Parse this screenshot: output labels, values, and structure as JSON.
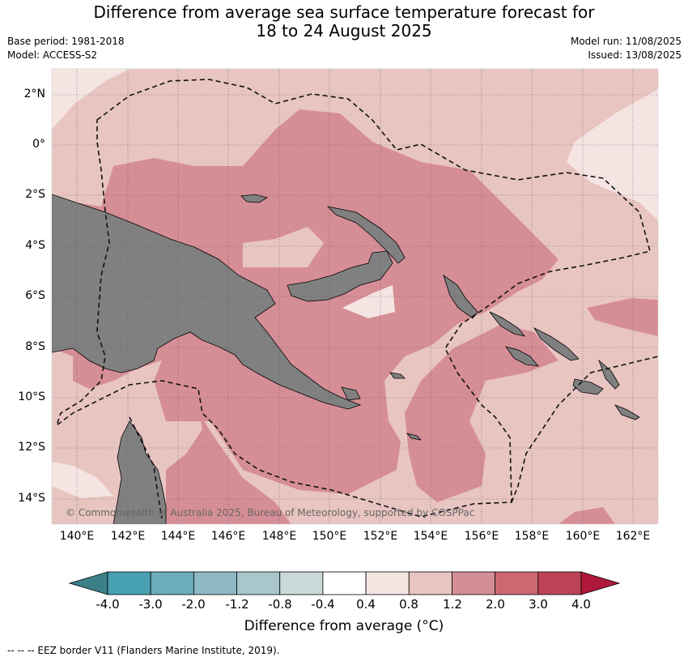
{
  "title_line1": "Difference from average sea surface temperature forecast for",
  "title_line2": "18 to 24 August 2025",
  "base_period": "Base period: 1981-2018",
  "model": "Model: ACCESS-S2",
  "model_run": "Model run: 11/08/2025",
  "issued": "Issued: 13/08/2025",
  "lat_labels": [
    "2°N",
    "0°",
    "2°S",
    "4°S",
    "6°S",
    "8°S",
    "10°S",
    "12°S",
    "14°S"
  ],
  "lon_labels": [
    "140°E",
    "142°E",
    "144°E",
    "146°E",
    "148°E",
    "150°E",
    "152°E",
    "154°E",
    "156°E",
    "158°E",
    "160°E",
    "162°E"
  ],
  "copyright": "© Commonwealth of Australia 2025, Bureau of Meteorology, supported by COSPPac",
  "colorbar": {
    "title": "Difference from average (°C)",
    "ticks": [
      "-4.0",
      "-3.0",
      "-2.0",
      "-1.2",
      "-0.8",
      "-0.4",
      "0.4",
      "0.8",
      "1.2",
      "2.0",
      "3.0",
      "4.0"
    ],
    "colors": [
      "#47a1b2",
      "#6aadbc",
      "#8db8c4",
      "#a8c6cb",
      "#c9d9da",
      "#ffffff",
      "#f4e5e3",
      "#e8c5c1",
      "#d68e96",
      "#cd6872",
      "#bf4356"
    ],
    "extend_low_color": "#3b8089",
    "extend_high_color": "#b0193a"
  },
  "land_color": "#808080",
  "footer": "--  --  -- EEZ border V11 (Flanders Marine Institute, 2019)."
}
